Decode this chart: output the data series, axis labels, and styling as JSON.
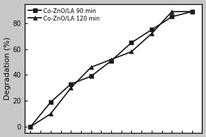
{
  "series": [
    {
      "label": "Co-ZnO/LA 90 min",
      "x": [
        0,
        1,
        2,
        3,
        4,
        5,
        6,
        7,
        8
      ],
      "y": [
        0,
        19,
        33,
        39,
        51,
        65,
        75,
        85,
        89
      ],
      "marker": "s",
      "color": "#1a1a1a"
    },
    {
      "label": "Co-ZnO/LA 120 min",
      "x": [
        0,
        1,
        2,
        3,
        4,
        5,
        6,
        7,
        8
      ],
      "y": [
        0,
        10,
        30,
        46,
        52,
        58,
        72,
        89,
        89
      ],
      "marker": "^",
      "color": "#1a1a1a"
    }
  ],
  "ylabel": "Degradation (%)",
  "ylim": [
    -5,
    95
  ],
  "yticks": [
    0,
    20,
    40,
    60,
    80
  ],
  "xlim": [
    -0.3,
    8.5
  ],
  "plot_bg": "#ffffff",
  "fig_bg": "#c8c8c8",
  "legend_loc": "upper left",
  "tick_fontsize": 7,
  "label_fontsize": 8
}
